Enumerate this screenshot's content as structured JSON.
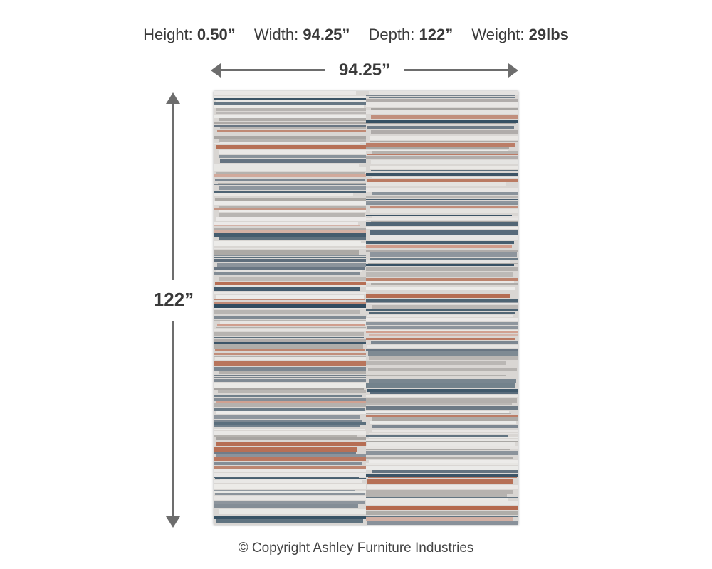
{
  "specs": {
    "height_label": "Height:",
    "height_value": "0.50”",
    "width_label": "Width:",
    "width_value": "94.25”",
    "depth_label": "Depth:",
    "depth_value": "122”",
    "weight_label": "Weight:",
    "weight_value": "29lbs"
  },
  "dimensions": {
    "width": "94.25”",
    "height": "122”"
  },
  "rug": {
    "colors": {
      "base": "#d9d6d3",
      "light": "#ecebe9",
      "gray": "#a7a4a1",
      "slate": "#5f6e7c",
      "navy": "#2f4a5e",
      "rust": "#b4694e",
      "blush": "#cf9b8a"
    }
  },
  "footer": {
    "copyright": "© Copyright Ashley Furniture Industries"
  },
  "accent_color": "#6d6d6d"
}
